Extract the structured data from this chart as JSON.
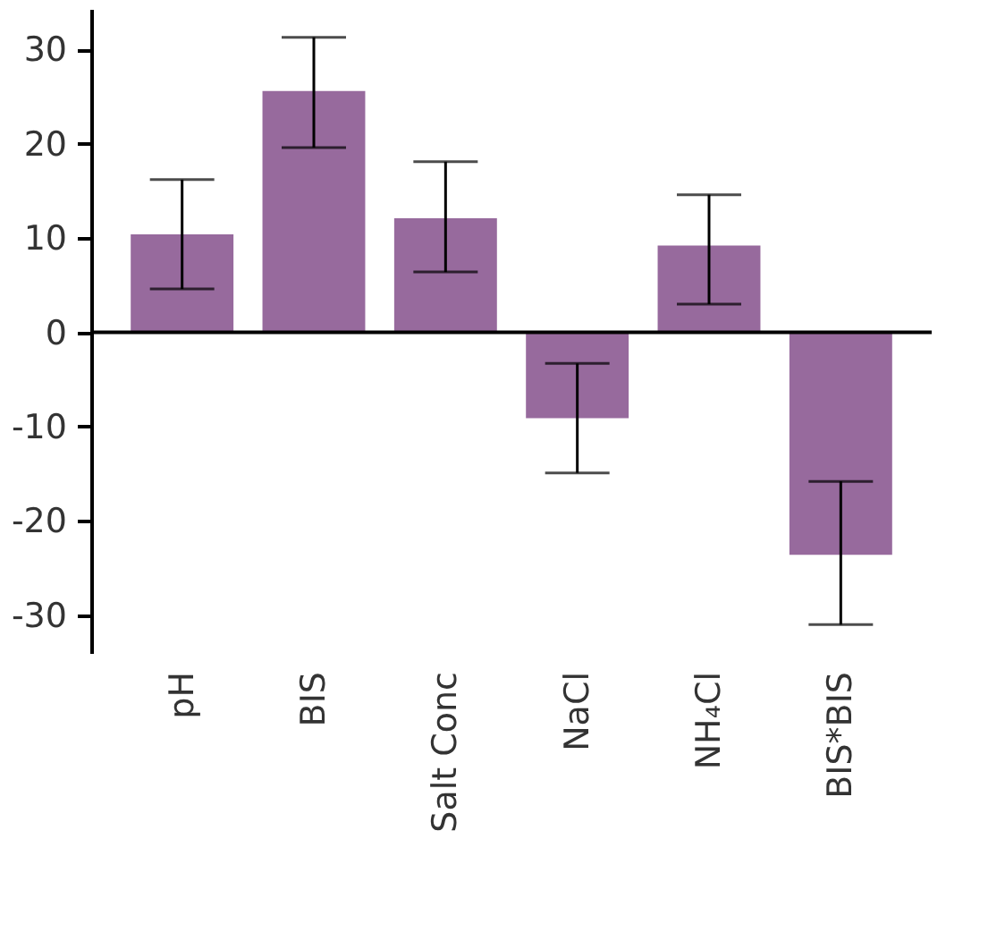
{
  "chart_data": {
    "type": "bar",
    "categories": [
      "pH",
      "BIS",
      "Salt Conc",
      "NaCl",
      "NH₄Cl",
      "BIS*BIS"
    ],
    "values": [
      10.4,
      25.6,
      12.1,
      -9.1,
      9.2,
      -23.6
    ],
    "errors": [
      [
        4.6,
        16.2
      ],
      [
        19.6,
        31.3
      ],
      [
        6.4,
        18.1
      ],
      [
        -14.9,
        -3.3
      ],
      [
        3.0,
        14.6
      ],
      [
        -31.0,
        -15.8
      ]
    ],
    "color": "#976a9d",
    "ylim": [
      -34,
      34.3
    ],
    "yticks": [
      -30,
      -20,
      -10,
      0,
      10,
      20,
      30
    ],
    "ref_lines": [
      {
        "axis": "y",
        "value": 0,
        "color": "#000000"
      }
    ],
    "grid": false
  }
}
